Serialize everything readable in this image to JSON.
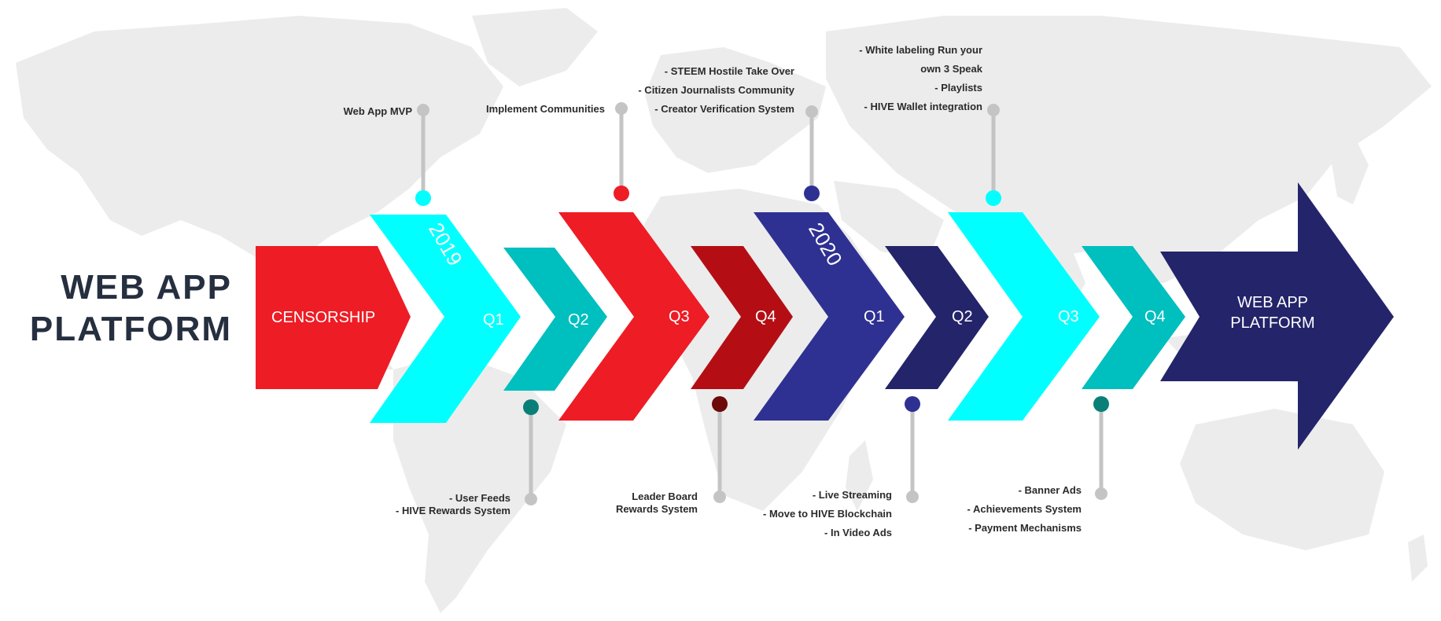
{
  "title": {
    "line1": "WEB APP",
    "line2": "PLATFORM"
  },
  "colors": {
    "red": "#ee1c25",
    "cyan": "#00ffff",
    "teal": "#00bfbf",
    "dark_red": "#b40e14",
    "indigo": "#2e3192",
    "navy": "#23246a",
    "map": "#eeeeee",
    "stem": "#c4c4c4"
  },
  "chevrons": [
    {
      "id": "censorship",
      "label": "CENSORSHIP",
      "color": "red"
    },
    {
      "id": "2019-q1",
      "label": "Q1",
      "color": "cyan"
    },
    {
      "id": "2019-q2",
      "label": "Q2",
      "color": "teal"
    },
    {
      "id": "2019-q3",
      "label": "Q3",
      "color": "red"
    },
    {
      "id": "2019-q4",
      "label": "Q4",
      "color": "dark_red"
    },
    {
      "id": "2020-q1",
      "label": "Q1",
      "color": "indigo"
    },
    {
      "id": "2020-q2",
      "label": "Q2",
      "color": "navy"
    },
    {
      "id": "2020-q3",
      "label": "Q3",
      "color": "cyan"
    },
    {
      "id": "2020-q4",
      "label": "Q4",
      "color": "teal"
    }
  ],
  "end_arrow": {
    "label_line1": "WEB APP",
    "label_line2": "PLATFORM",
    "color": "navy"
  },
  "years": [
    "2019",
    "2020"
  ],
  "milestones": {
    "2019_q1": [
      "Web App MVP"
    ],
    "2019_q2": [
      "- User Feeds",
      "- HIVE Rewards System"
    ],
    "2019_q3": [
      "Implement Communities"
    ],
    "2019_q4": [
      "Leader Board",
      "Rewards System"
    ],
    "2020_q1": [
      "- STEEM  Hostile Take Over",
      "- Citizen Journalists  Community",
      "- Creator Verification System"
    ],
    "2020_q2": [
      "- Live Streaming",
      "- Move to HIVE Blockchain",
      "- In Video Ads"
    ],
    "2020_q3": [
      "- White labeling Run your",
      "own 3 Speak",
      "- Playlists",
      "- HIVE Wallet integration"
    ],
    "2020_q4": [
      "- Banner Ads",
      "- Achievements System",
      "- Payment Mechanisms"
    ]
  },
  "dot_colors": {
    "2019_q1": "cyan",
    "2019_q2": "teal_dark",
    "2019_q3": "red",
    "2019_q4": "maroon",
    "2020_q1": "indigo",
    "2020_q2": "indigo",
    "2020_q3": "cyan",
    "2020_q4": "teal_dark"
  }
}
